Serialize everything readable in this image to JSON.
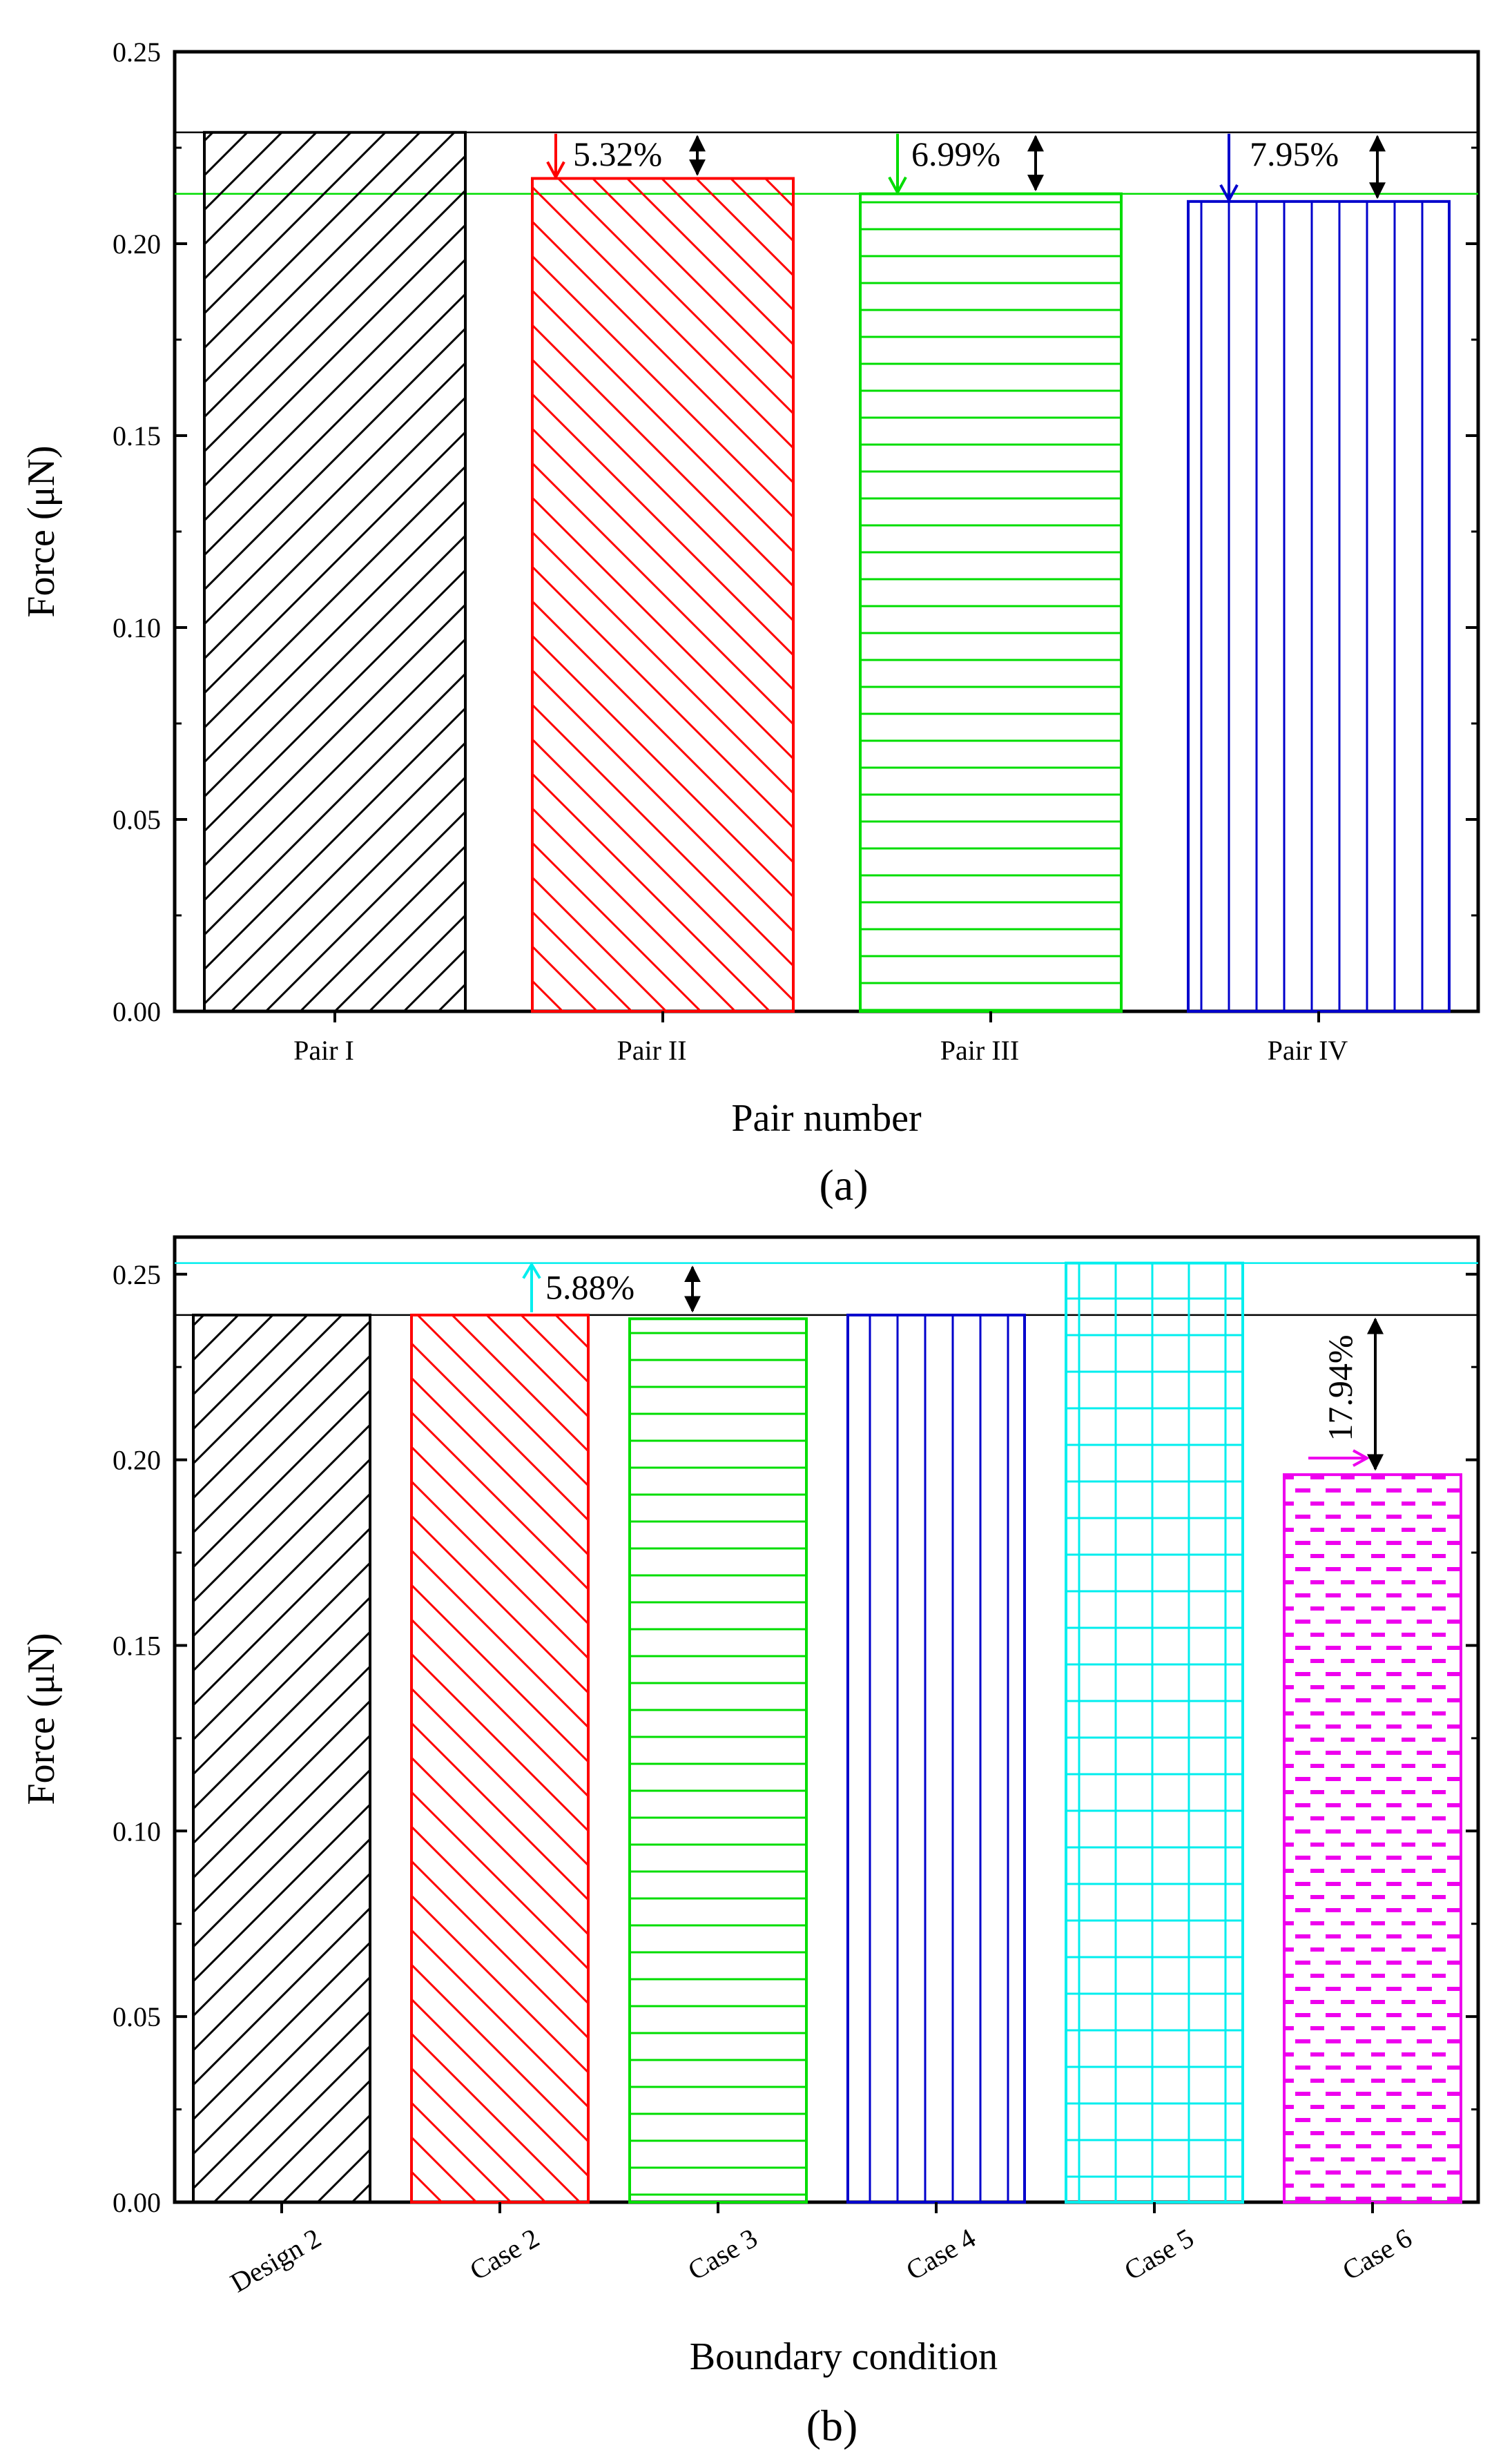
{
  "chart_data": [
    {
      "type": "bar",
      "panel_label": "(a)",
      "title": "",
      "xlabel": "Pair number",
      "ylabel": "Force (μN)",
      "ylim": [
        0,
        0.25
      ],
      "yticks": [
        "0.00",
        "0.05",
        "0.10",
        "0.15",
        "0.20",
        "0.25"
      ],
      "grid": false,
      "categories": [
        "Pair I",
        "Pair II",
        "Pair III",
        "Pair IV"
      ],
      "values": [
        0.229,
        0.217,
        0.213,
        0.211
      ],
      "colors": [
        "#000000",
        "#ff0000",
        "#00dd00",
        "#0000cc"
      ],
      "patterns": [
        "diag-up",
        "diag-down",
        "horizontal",
        "vertical"
      ],
      "reference_lines": [
        {
          "value": 0.229,
          "color": "#000000"
        },
        {
          "value": 0.213,
          "color": "#00dd00"
        }
      ],
      "annotations": [
        {
          "text": "5.32%",
          "category": "Pair II",
          "color": "#ff0000"
        },
        {
          "text": "6.99%",
          "category": "Pair III",
          "color": "#00dd00"
        },
        {
          "text": "7.95%",
          "category": "Pair IV",
          "color": "#0000cc"
        }
      ]
    },
    {
      "type": "bar",
      "panel_label": "(b)",
      "title": "",
      "xlabel": "Boundary condition",
      "ylabel": "Force (μN)",
      "ylim": [
        0,
        0.26
      ],
      "yticks": [
        "0.00",
        "0.05",
        "0.10",
        "0.15",
        "0.20",
        "0.25"
      ],
      "grid": false,
      "categories": [
        "Design 2",
        "Case 2",
        "Case 3",
        "Case 4",
        "Case 5",
        "Case 6"
      ],
      "values": [
        0.239,
        0.239,
        0.238,
        0.239,
        0.253,
        0.196
      ],
      "colors": [
        "#000000",
        "#ff0000",
        "#00dd00",
        "#0000cc",
        "#00eeee",
        "#ee00ee"
      ],
      "patterns": [
        "diag-up",
        "diag-down",
        "horizontal",
        "vertical",
        "grid",
        "dashes"
      ],
      "reference_lines": [
        {
          "value": 0.239,
          "color": "#000000"
        },
        {
          "value": 0.253,
          "color": "#00eeee"
        }
      ],
      "annotations": [
        {
          "text": "5.88%",
          "category": "Case 2",
          "color": "#00eeee"
        },
        {
          "text": "17.94%",
          "category": "Case 6",
          "color": "#ee00ee"
        }
      ]
    }
  ]
}
